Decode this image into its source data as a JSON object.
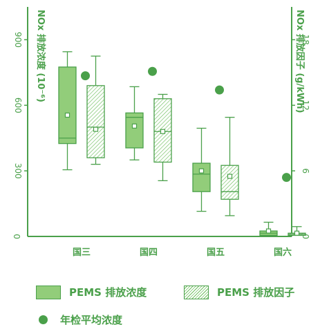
{
  "chart_data": {
    "type": "box",
    "categories": [
      "国三",
      "国四",
      "国五",
      "国六"
    ],
    "y_left": {
      "label": "NOx 排放浓度 (10⁻⁶)",
      "range": [
        0,
        1050
      ],
      "ticks": [
        0,
        300,
        600,
        900
      ]
    },
    "y_right": {
      "label": "NOx 排放因子 (g/kWh)",
      "range": [
        0,
        21
      ],
      "ticks": [
        0,
        6,
        12,
        18
      ]
    },
    "series": [
      {
        "name": "PEMS 排放浓度",
        "axis": "left",
        "boxes": [
          {
            "min": 305,
            "q1": 425,
            "median": 450,
            "q3": 775,
            "max": 845,
            "mean": 555
          },
          {
            "min": 350,
            "q1": 405,
            "median": 545,
            "q3": 565,
            "max": 685,
            "mean": 505
          },
          {
            "min": 115,
            "q1": 205,
            "median": 285,
            "q3": 335,
            "max": 495,
            "mean": 300
          },
          {
            "min": 5,
            "q1": 5,
            "median": 15,
            "q3": 25,
            "max": 65,
            "mean": 25
          }
        ]
      },
      {
        "name": "PEMS 排放因子",
        "axis": "right",
        "boxes": [
          {
            "min": 6.6,
            "q1": 7.2,
            "median": 10.0,
            "q3": 13.8,
            "max": 16.5,
            "mean": 9.8
          },
          {
            "min": 5.1,
            "q1": 6.8,
            "median": 9.6,
            "q3": 12.6,
            "max": 13.0,
            "mean": 9.6
          },
          {
            "min": 1.9,
            "q1": 3.4,
            "median": 4.1,
            "q3": 6.5,
            "max": 10.9,
            "mean": 5.5
          },
          {
            "min": 0.1,
            "q1": 0.1,
            "median": 0.2,
            "q3": 0.3,
            "max": 0.9,
            "mean": 0.3
          }
        ]
      },
      {
        "name": "年检平均浓度",
        "axis": "left",
        "values": [
          735,
          755,
          670,
          270
        ]
      }
    ],
    "grid": false,
    "legend_position": "bottom"
  },
  "legend": {
    "items": [
      {
        "label": "PEMS 排放浓度"
      },
      {
        "label": "PEMS 排放因子"
      },
      {
        "label": "年检平均浓度"
      }
    ]
  },
  "colors": {
    "axis": "#4aa04a",
    "box_fill": "#92cd7a",
    "hatch": "#6fbf5f",
    "text": "#4aa04a",
    "dot": "#4aa04a"
  }
}
